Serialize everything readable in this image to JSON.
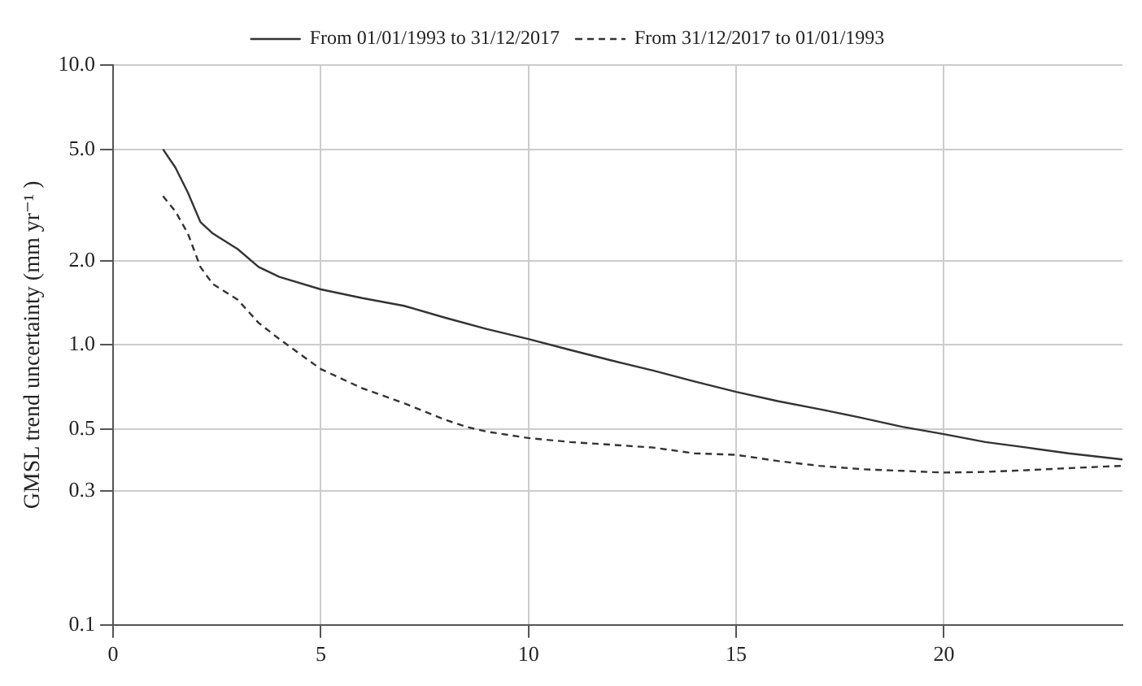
{
  "chart_data": {
    "type": "line",
    "ylabel": "GMSL trend uncertainty (mm yr⁻¹ )",
    "log": "y",
    "grid": true,
    "legend": "top",
    "xlim": [
      0,
      24.3
    ],
    "xticks": [
      0,
      5,
      10,
      15,
      20
    ],
    "ylim": [
      0.1,
      10
    ],
    "yticks": [
      {
        "value": 0.1,
        "label": "0.1"
      },
      0.3,
      0.5,
      {
        "value": 1,
        "label": "1.0"
      },
      {
        "value": 2,
        "label": "2.0"
      },
      {
        "value": 5,
        "label": "5.0"
      },
      {
        "value": 10,
        "label": "10.0"
      }
    ],
    "series": [
      {
        "name": "From 01/01/1993 to 31/12/2017",
        "color": "#333333",
        "line_style": "solid",
        "x": [
          1.2,
          1.5,
          1.8,
          2.1,
          2.4,
          3,
          3.5,
          4,
          5,
          6,
          7,
          8,
          9,
          10,
          11,
          12,
          13,
          14,
          15,
          16,
          17,
          18,
          19,
          20,
          21,
          22,
          23,
          24.3
        ],
        "values": [
          5.0,
          4.3,
          3.5,
          2.75,
          2.5,
          2.2,
          1.9,
          1.75,
          1.58,
          1.47,
          1.38,
          1.25,
          1.14,
          1.05,
          0.96,
          0.88,
          0.81,
          0.74,
          0.68,
          0.63,
          0.59,
          0.55,
          0.51,
          0.48,
          0.45,
          0.43,
          0.41,
          0.39
        ]
      },
      {
        "name": "From 31/12/2017 to 01/01/1993",
        "color": "#333333",
        "line_style": "dashed",
        "x": [
          1.2,
          1.5,
          1.8,
          2.1,
          2.4,
          3,
          3.5,
          4,
          5,
          6,
          7,
          8,
          8.5,
          9,
          10,
          11,
          12,
          13,
          14,
          15,
          16,
          17,
          18,
          19,
          20,
          21,
          22,
          23,
          24.3
        ],
        "values": [
          3.4,
          3.0,
          2.5,
          1.9,
          1.65,
          1.45,
          1.2,
          1.05,
          0.82,
          0.7,
          0.62,
          0.54,
          0.51,
          0.49,
          0.465,
          0.45,
          0.44,
          0.43,
          0.41,
          0.405,
          0.385,
          0.37,
          0.36,
          0.355,
          0.35,
          0.352,
          0.357,
          0.363,
          0.37
        ]
      }
    ]
  }
}
